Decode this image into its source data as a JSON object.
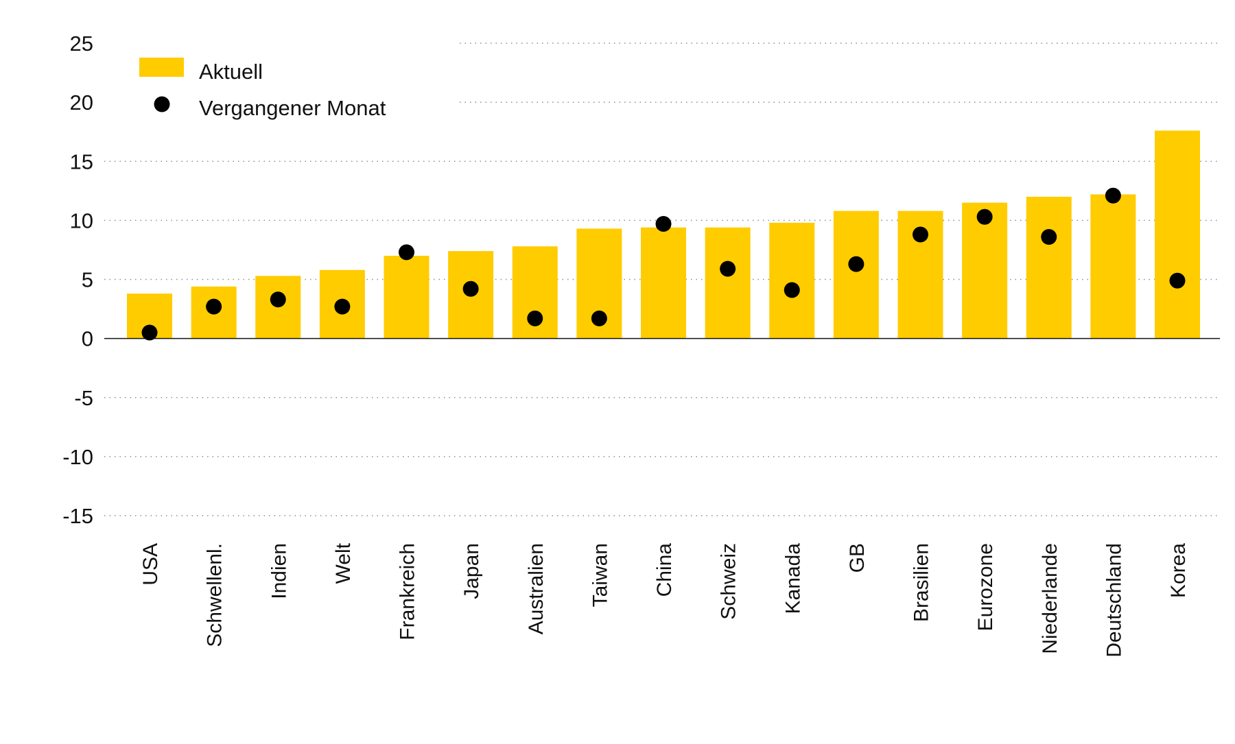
{
  "chart_data": {
    "type": "bar",
    "title": "",
    "xlabel": "",
    "ylabel": "",
    "ylim": [
      -15,
      25
    ],
    "yticks": [
      25,
      20,
      15,
      10,
      5,
      0,
      -5,
      -10,
      -15
    ],
    "grid": true,
    "legend_position": "top-left",
    "categories": [
      "USA",
      "Schwellenl.",
      "Indien",
      "Welt",
      "Frankreich",
      "Japan",
      "Australien",
      "Taiwan",
      "China",
      "Schweiz",
      "Kanada",
      "GB",
      "Brasilien",
      "Eurozone",
      "Niederlande",
      "Deutschland",
      "Korea"
    ],
    "series": [
      {
        "name": "Aktuell",
        "kind": "bar",
        "color": "#FFCC00",
        "values": [
          3.8,
          4.4,
          5.3,
          5.8,
          7.0,
          7.4,
          7.8,
          9.3,
          9.4,
          9.4,
          9.8,
          10.8,
          10.8,
          11.5,
          12.0,
          12.2,
          17.6
        ]
      },
      {
        "name": "Vergangener Monat",
        "kind": "dot",
        "color": "#000000",
        "values": [
          0.5,
          2.7,
          3.3,
          2.7,
          7.3,
          4.2,
          1.7,
          1.7,
          9.7,
          5.9,
          4.1,
          6.3,
          8.8,
          10.3,
          8.6,
          12.1,
          4.9
        ]
      }
    ]
  }
}
